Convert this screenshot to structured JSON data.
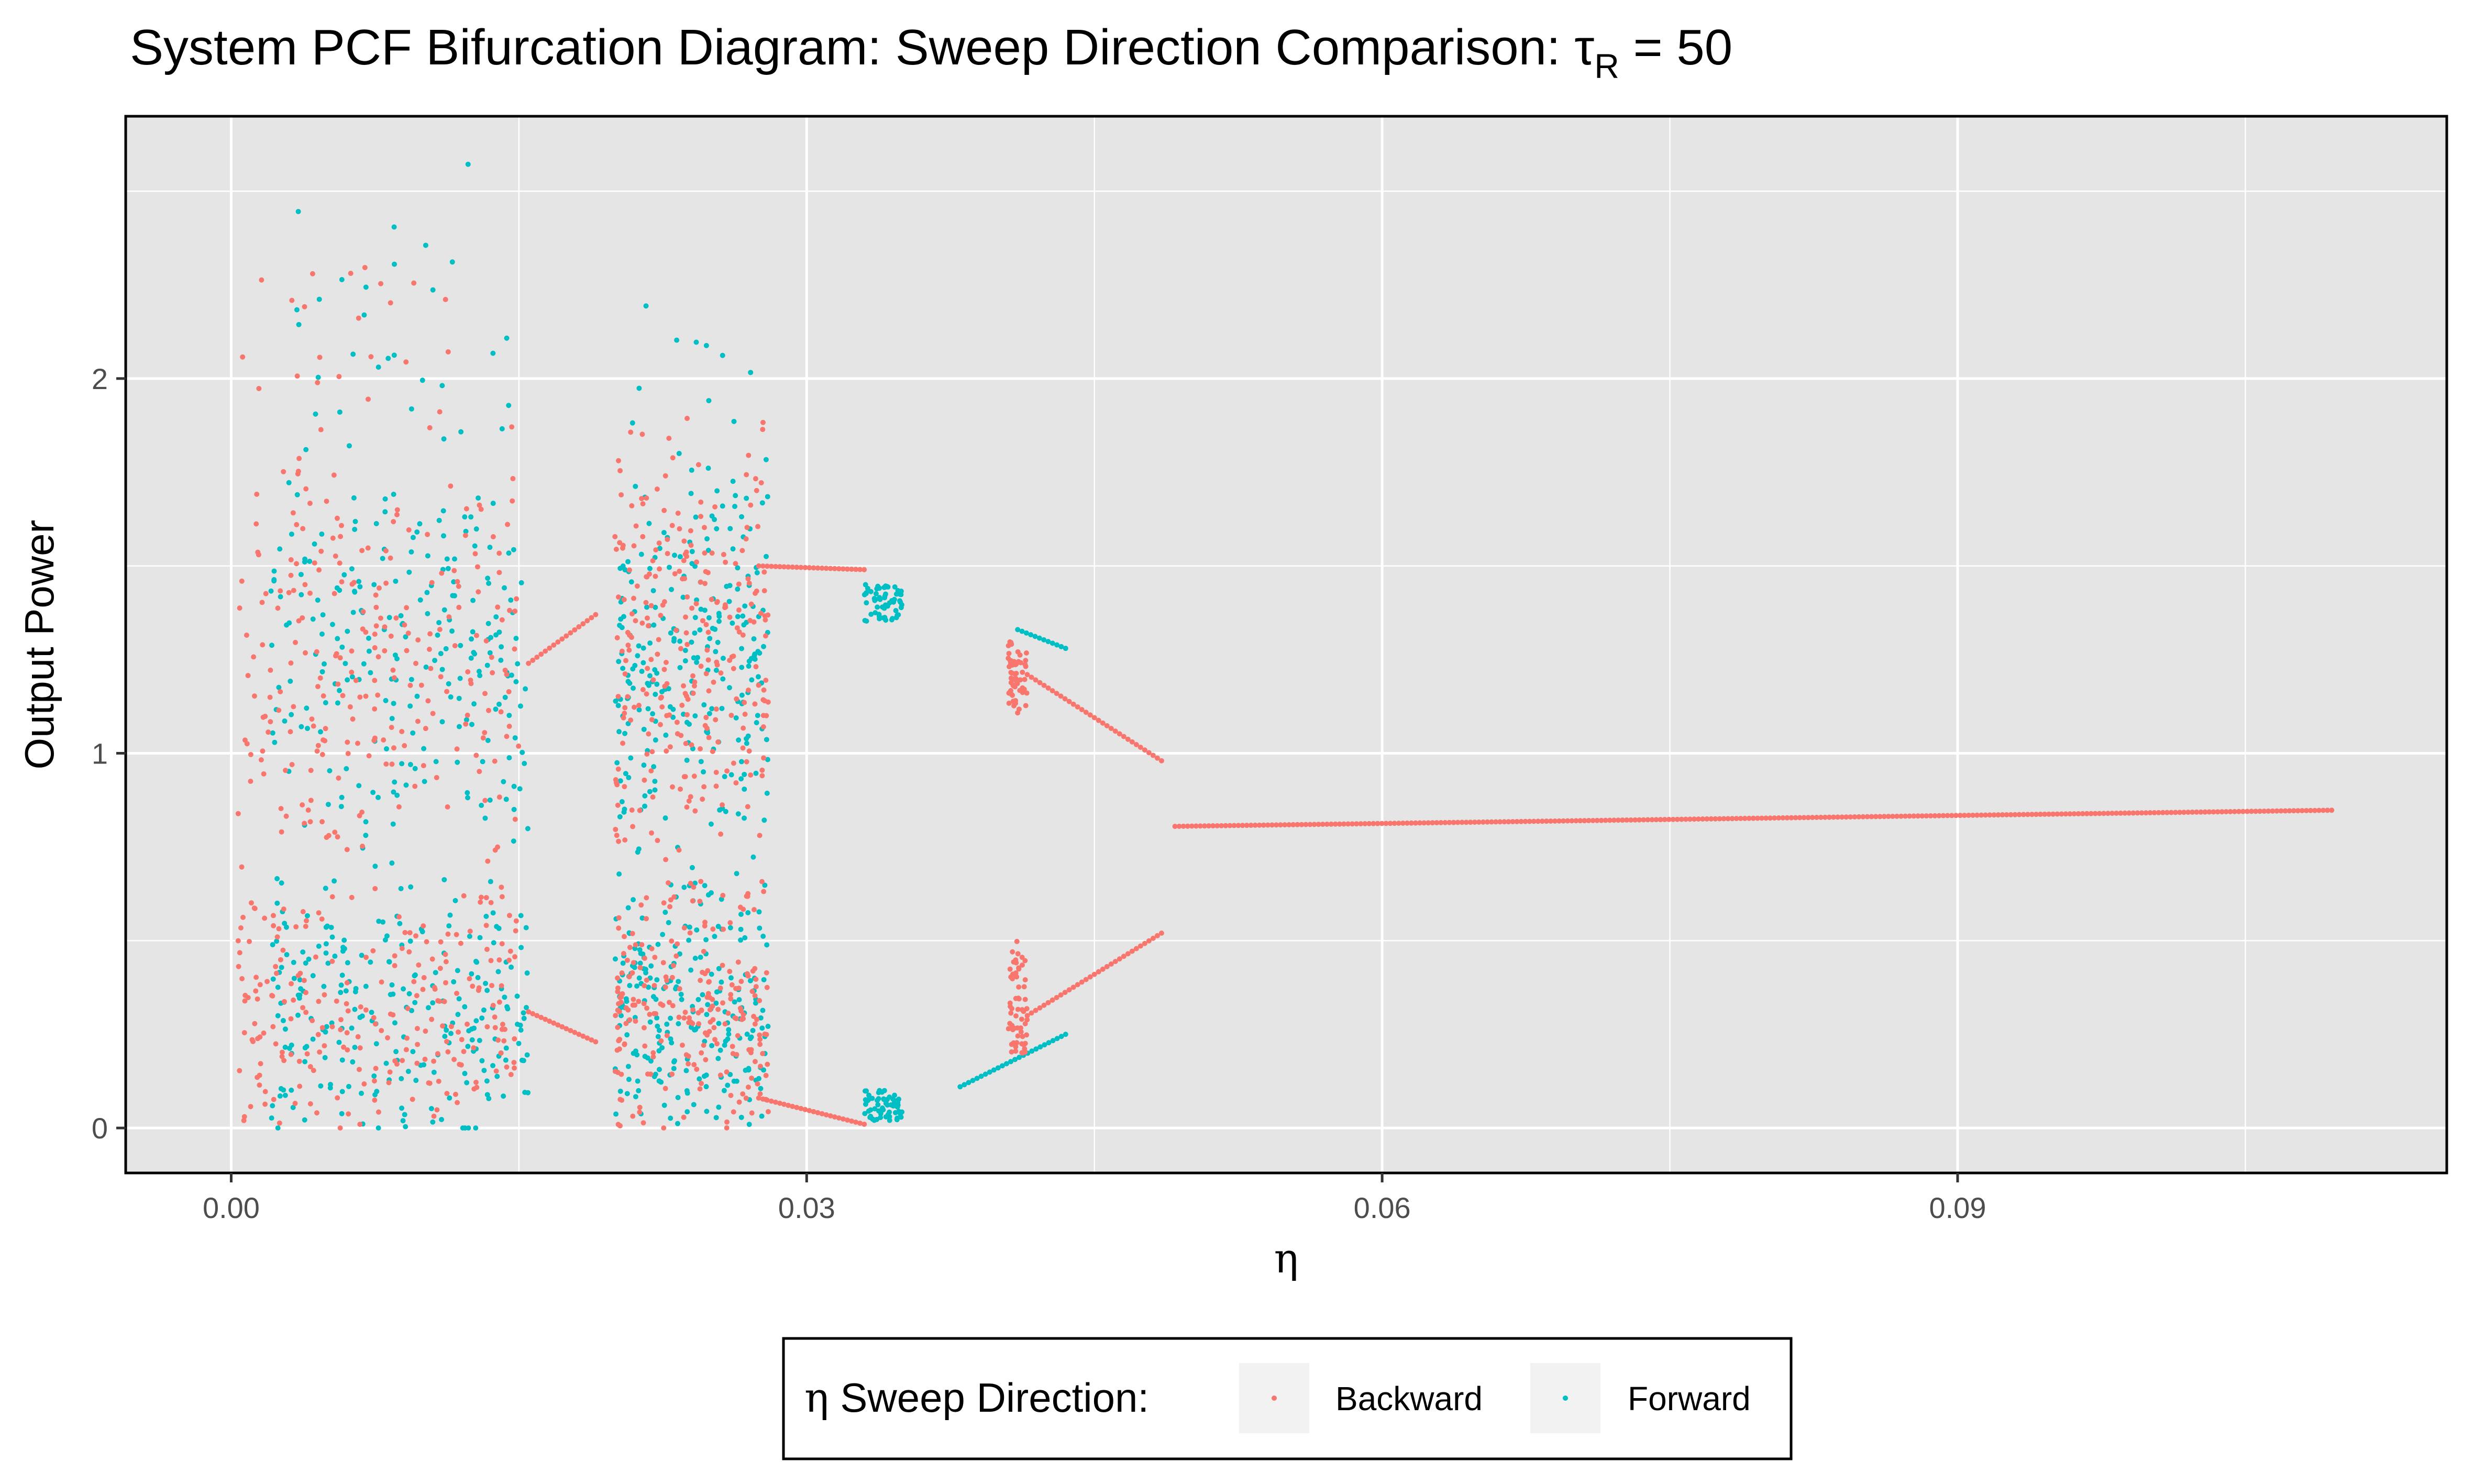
{
  "chart_data": {
    "type": "scatter",
    "title": "System PCF Bifurcation Diagram: Sweep Direction Comparison:  τ",
    "title_sub": "R",
    "title_suffix": " = 50",
    "xlabel": "η",
    "ylabel": "Output Power",
    "xlim": [
      -0.0055,
      0.1155
    ],
    "ylim": [
      -0.12,
      2.7
    ],
    "x_ticks": [
      0.0,
      0.03,
      0.06,
      0.09
    ],
    "x_tick_labels": [
      "0.00",
      "0.03",
      "0.06",
      "0.09"
    ],
    "y_ticks": [
      0,
      1,
      2
    ],
    "y_tick_labels": [
      "0",
      "1",
      "2"
    ],
    "x_minor_ticks": [
      0.015,
      0.045,
      0.075,
      0.105
    ],
    "y_minor_ticks": [
      0.5,
      1.5,
      2.5
    ],
    "grid": true,
    "legend": {
      "position": "bottom",
      "title_symbol": "η",
      "title": " Sweep Direction:",
      "entries": [
        "Backward",
        "Forward"
      ]
    },
    "colors": {
      "Backward": "#F8766D",
      "Forward": "#00BFC4",
      "panel": "#E5E5E5",
      "grid": "#FFFFFF"
    },
    "series": [
      {
        "name": "Backward",
        "regimes": [
          {
            "kind": "branch",
            "x": [
              0.0492,
              0.1095
            ],
            "y": [
              0.805,
              0.848
            ]
          },
          {
            "kind": "branch",
            "x": [
              0.0415,
              0.0485
            ],
            "y": [
              1.21,
              0.98
            ]
          },
          {
            "kind": "branch",
            "x": [
              0.0415,
              0.0485
            ],
            "y": [
              0.3,
              0.52
            ]
          },
          {
            "kind": "branch",
            "x": [
              0.0155,
              0.019
            ],
            "y": [
              1.24,
              1.37
            ]
          },
          {
            "kind": "branch",
            "x": [
              0.0155,
              0.019
            ],
            "y": [
              0.31,
              0.23
            ]
          },
          {
            "kind": "branch",
            "x": [
              0.0275,
              0.033
            ],
            "y": [
              1.5,
              1.49
            ]
          },
          {
            "kind": "branch",
            "x": [
              0.0275,
              0.033
            ],
            "y": [
              0.08,
              0.01
            ]
          },
          {
            "kind": "chaos",
            "x": [
              0.0003,
              0.015
            ],
            "y": [
              0.0,
              2.3
            ]
          },
          {
            "kind": "chaos",
            "x": [
              0.02,
              0.028
            ],
            "y": [
              0.0,
              1.9
            ]
          },
          {
            "kind": "band",
            "x": [
              0.0405,
              0.0415
            ],
            "y": [
              1.1,
              1.3
            ]
          },
          {
            "kind": "band",
            "x": [
              0.0405,
              0.0415
            ],
            "y": [
              0.2,
              0.5
            ]
          }
        ]
      },
      {
        "name": "Forward",
        "regimes": [
          {
            "kind": "branch",
            "x": [
              0.041,
              0.0435
            ],
            "y": [
              1.33,
              1.28
            ]
          },
          {
            "kind": "branch",
            "x": [
              0.038,
              0.0435
            ],
            "y": [
              0.11,
              0.25
            ]
          },
          {
            "kind": "chaos",
            "x": [
              0.002,
              0.0155
            ],
            "y": [
              0.0,
              2.6
            ]
          },
          {
            "kind": "chaos",
            "x": [
              0.02,
              0.028
            ],
            "y": [
              0.0,
              2.2
            ]
          },
          {
            "kind": "band",
            "x": [
              0.033,
              0.035
            ],
            "y": [
              1.35,
              1.45
            ]
          },
          {
            "kind": "band",
            "x": [
              0.033,
              0.035
            ],
            "y": [
              0.02,
              0.1
            ]
          }
        ]
      }
    ]
  }
}
